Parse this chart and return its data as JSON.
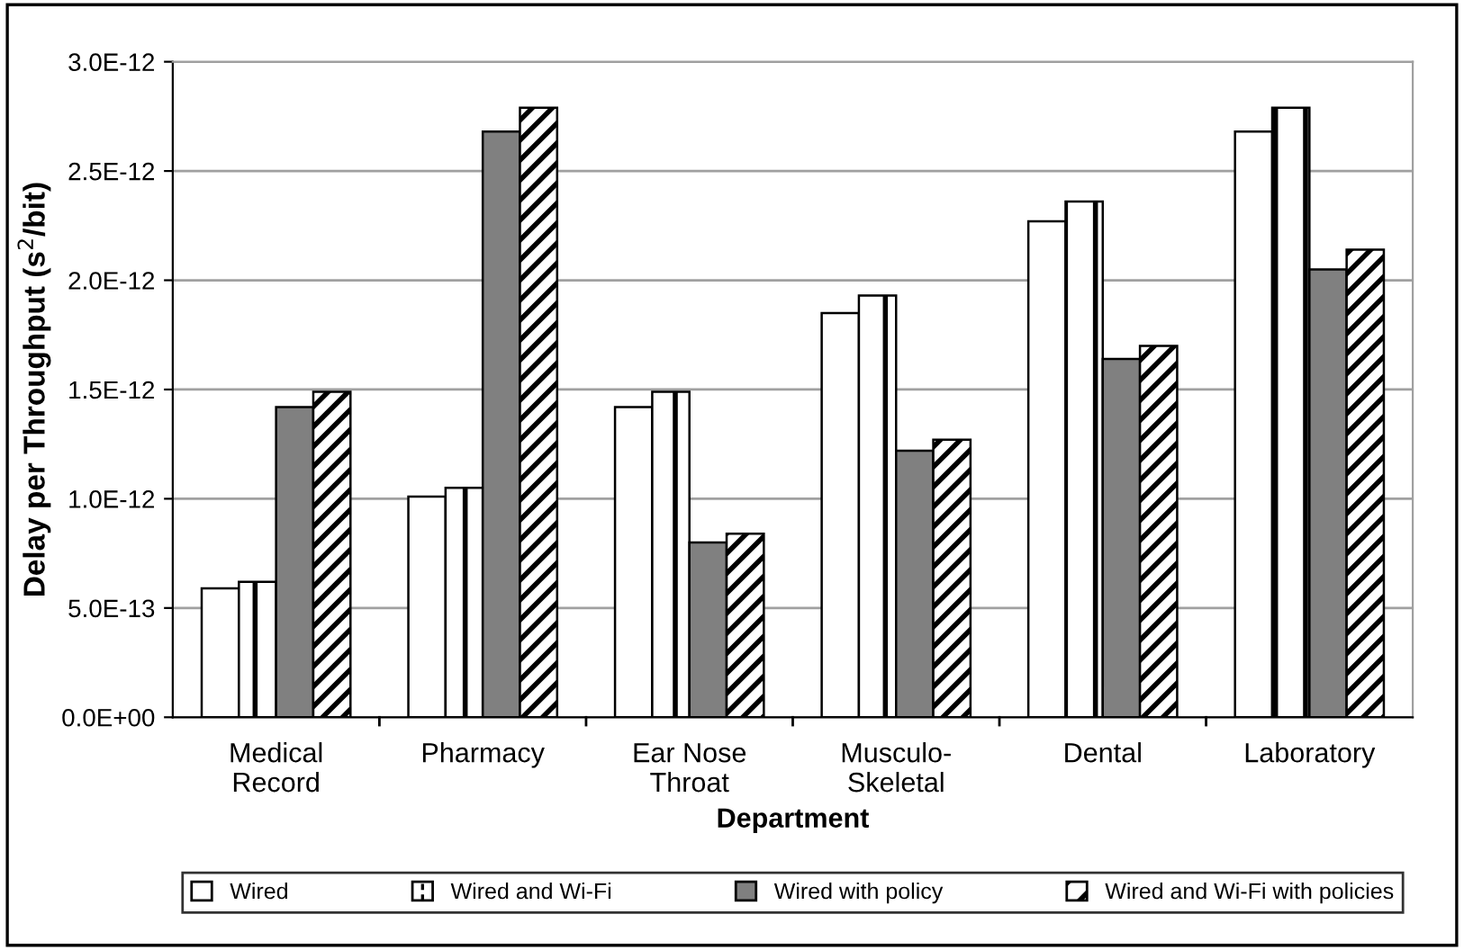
{
  "chart_data": {
    "type": "bar",
    "xlabel": "Department",
    "ylabel": "Delay per Throughput (s$^{2}$/bit)",
    "categories": [
      "Medical\nRecord",
      "Pharmacy",
      "Ear Nose\nThroat",
      "Musculo-\nSkeletal",
      "Dental",
      "Laboratory"
    ],
    "series": [
      {
        "name": "Wired",
        "color": "#ffffff",
        "values": [
          5.9e-13,
          1.01e-12,
          1.42e-12,
          1.85e-12,
          2.27e-12,
          2.68e-12
        ]
      },
      {
        "name": "Wired and Wi-Fi",
        "color": "#ffffff",
        "values": [
          6.2e-13,
          1.05e-12,
          1.49e-12,
          1.93e-12,
          2.36e-12,
          2.79e-12
        ]
      },
      {
        "name": "Wired with policy",
        "color": "#808080",
        "values": [
          1.42e-12,
          2.68e-12,
          8e-13,
          1.22e-12,
          1.64e-12,
          2.05e-12
        ]
      },
      {
        "name": "Wired and Wi-Fi with policies",
        "color": "#ffffff",
        "values": [
          1.49e-12,
          2.79e-12,
          8.4e-13,
          1.27e-12,
          1.7e-12,
          2.14e-12
        ]
      }
    ],
    "ylim": [
      0,
      3e-12
    ],
    "yticks": [
      {
        "value": 0,
        "label": "0.0E+00"
      },
      {
        "value": 5e-13,
        "label": "5.0E-13"
      },
      {
        "value": 1e-12,
        "label": "1.0E-12"
      },
      {
        "value": 1.5e-12,
        "label": "1.5E-12"
      },
      {
        "value": 2e-12,
        "label": "2.0E-12"
      },
      {
        "value": 2.5e-12,
        "label": "2.5E-12"
      },
      {
        "value": 3e-12,
        "label": "3.0E-12"
      }
    ],
    "grid": "y",
    "legend": "bottom"
  }
}
